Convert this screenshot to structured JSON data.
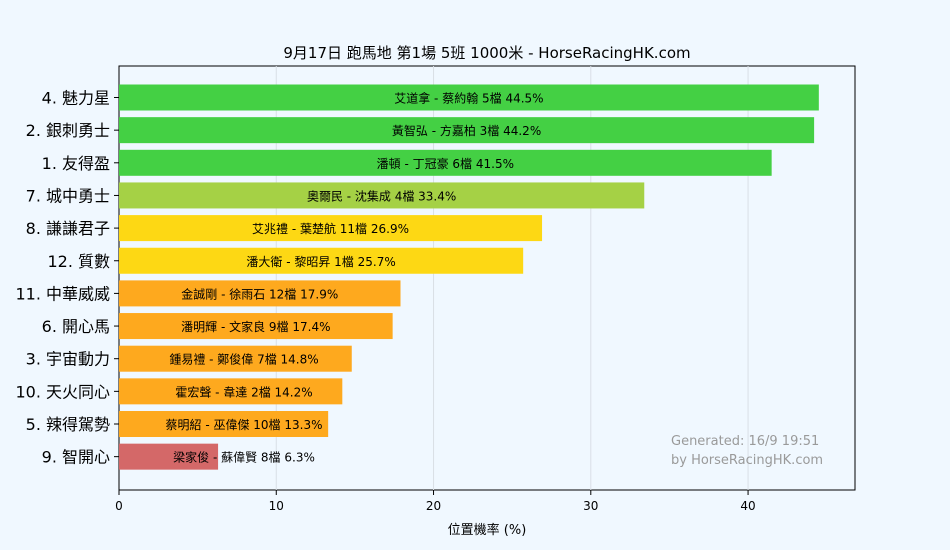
{
  "chart_data": {
    "type": "bar",
    "orientation": "horizontal",
    "title": "9月17日  跑馬地  第1場  5班  1000米 - HorseRacingHK.com",
    "xlabel": "位置機率 (%)",
    "ylabel": "",
    "xlim": [
      0,
      46.8
    ],
    "xticks": [
      0,
      10,
      20,
      30,
      40
    ],
    "grid": "vertical",
    "categories": [
      "4. 魅力星",
      "2. 銀刺勇士",
      "1. 友得盈",
      "7. 城中勇士",
      "8. 謙謙君子",
      "12. 質數",
      "11. 中華威威",
      "6. 開心馬",
      "3. 宇宙動力",
      "10. 天火同心",
      "5. 辣得駕勢",
      "9. 智開心"
    ],
    "values": [
      44.5,
      44.2,
      41.5,
      33.4,
      26.9,
      25.7,
      17.9,
      17.4,
      14.8,
      14.2,
      13.3,
      6.3
    ],
    "bar_labels": [
      "艾道拿 - 蔡約翰 5檔  44.5%",
      "黃智弘 - 方嘉柏 3檔  44.2%",
      "潘頓 - 丁冠豪 6檔  41.5%",
      "奧爾民 - 沈集成 4檔  33.4%",
      "艾兆禮 - 葉楚航 11檔  26.9%",
      "潘大衛 - 黎昭昇 1檔  25.7%",
      "金誠剛 - 徐雨石 12檔  17.9%",
      "潘明輝 - 文家良 9檔  17.4%",
      "鍾易禮 - 鄭俊偉 7檔  14.8%",
      "霍宏聲 - 韋達 2檔  14.2%",
      "蔡明紹 - 巫偉傑 10檔  13.3%",
      "梁家俊 - 蘇偉賢 8檔  6.3%"
    ],
    "colors": [
      "#44d044",
      "#44d044",
      "#44d044",
      "#a5d145",
      "#fdd814",
      "#fdd814",
      "#fea91e",
      "#fea91e",
      "#fea91e",
      "#fea91e",
      "#fea91e",
      "#d46868"
    ],
    "annotation": [
      "Generated: 16/9 19:51",
      "by HorseRacingHK.com"
    ]
  }
}
